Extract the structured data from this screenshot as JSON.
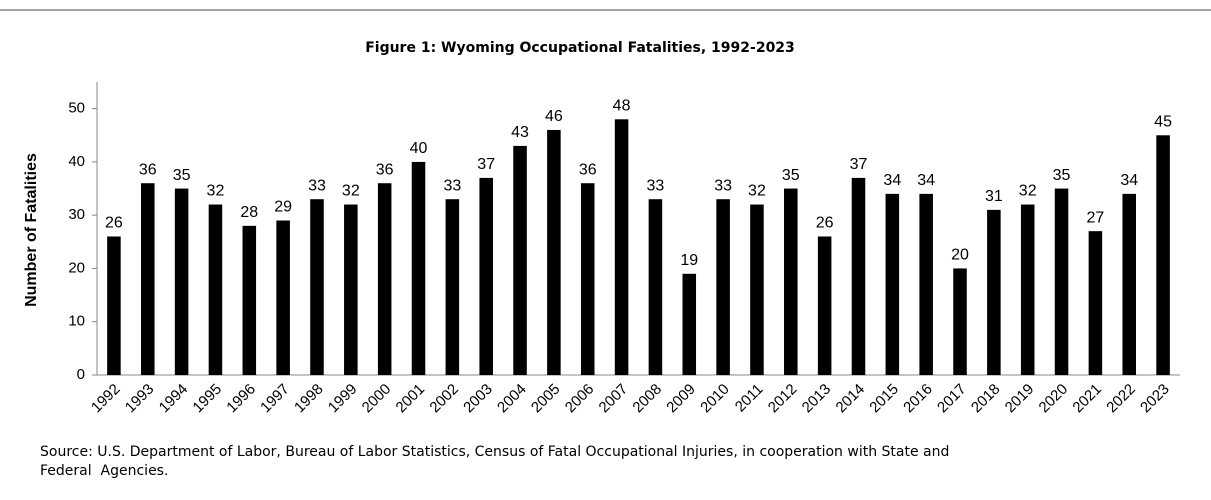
{
  "chart_data": {
    "type": "bar",
    "title": "Figure 1: Wyoming Occupational Fatalities, 1992-2023",
    "y_label": "Number of Fatalities",
    "categories": [
      "1992",
      "1993",
      "1994",
      "1995",
      "1996",
      "1997",
      "1998",
      "1999",
      "2000",
      "2001",
      "2002",
      "2003",
      "2004",
      "2005",
      "2006",
      "2007",
      "2008",
      "2009",
      "2010",
      "2011",
      "2012",
      "2013",
      "2014",
      "2015",
      "2016",
      "2017",
      "2018",
      "2019",
      "2020",
      "2021",
      "2022",
      "2023"
    ],
    "values": [
      26,
      36,
      35,
      32,
      28,
      29,
      33,
      32,
      36,
      40,
      33,
      37,
      43,
      46,
      36,
      48,
      33,
      19,
      33,
      32,
      35,
      26,
      37,
      34,
      34,
      20,
      31,
      32,
      35,
      27,
      34,
      45
    ],
    "color": "#000000",
    "ylim": [
      0,
      55
    ],
    "yticks": [
      0,
      10,
      20,
      30,
      40,
      50
    ],
    "grid": false,
    "source": [
      "Source: U.S. Department of Labor, Bureau of Labor Statistics, Census of Fatal Occupational Injuries, in cooperation with State and",
      "Federal  Agencies."
    ]
  }
}
